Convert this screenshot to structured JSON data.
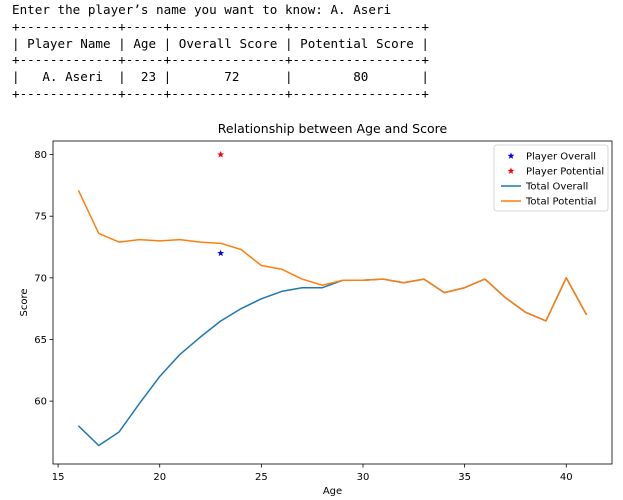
{
  "console": {
    "prompt": "Enter the player’s name you want to know: A. Aseri",
    "border": "+-------------+-----+---------------+-----------------+",
    "header": "| Player Name | Age | Overall Score | Potential Score |",
    "row": "|   A. Aseri  |  23 |       72      |        80       |"
  },
  "chart_data": {
    "type": "line",
    "title": "Relationship between Age and Score",
    "xlabel": "Age",
    "ylabel": "Score",
    "xlim": [
      14.75,
      42.25
    ],
    "ylim": [
      54.9,
      81.1
    ],
    "xticks": [
      15,
      20,
      25,
      30,
      35,
      40
    ],
    "yticks": [
      60,
      65,
      70,
      75,
      80
    ],
    "grid": false,
    "legend_position": "top-right",
    "x": [
      16,
      17,
      18,
      19,
      20,
      21,
      22,
      23,
      24,
      25,
      26,
      27,
      28,
      29,
      30,
      31,
      32,
      33,
      34,
      35,
      36,
      37,
      38,
      39,
      40,
      41
    ],
    "series": [
      {
        "name": "Total Overall",
        "color": "#1f77b4",
        "values": [
          58.0,
          56.4,
          57.5,
          59.8,
          62.0,
          63.8,
          65.2,
          66.5,
          67.5,
          68.3,
          68.9,
          69.2,
          69.2,
          69.8,
          69.8,
          69.9,
          69.6,
          69.9,
          68.8,
          69.2,
          69.9,
          68.4,
          67.2,
          66.5,
          70.0,
          67.0
        ]
      },
      {
        "name": "Total Potential",
        "color": "#ff7f0e",
        "values": [
          77.1,
          73.6,
          72.9,
          73.1,
          73.0,
          73.1,
          72.9,
          72.8,
          72.3,
          71.0,
          70.7,
          69.9,
          69.4,
          69.8,
          69.8,
          69.9,
          69.6,
          69.9,
          68.8,
          69.2,
          69.9,
          68.4,
          67.2,
          66.5,
          70.0,
          67.0
        ]
      }
    ],
    "points": [
      {
        "name": "Player Overall",
        "x": 23,
        "y": 72,
        "color": "#0000ff",
        "marker": "*"
      },
      {
        "name": "Player Potential",
        "x": 23,
        "y": 80,
        "color": "#ff0000",
        "marker": "*"
      }
    ]
  }
}
